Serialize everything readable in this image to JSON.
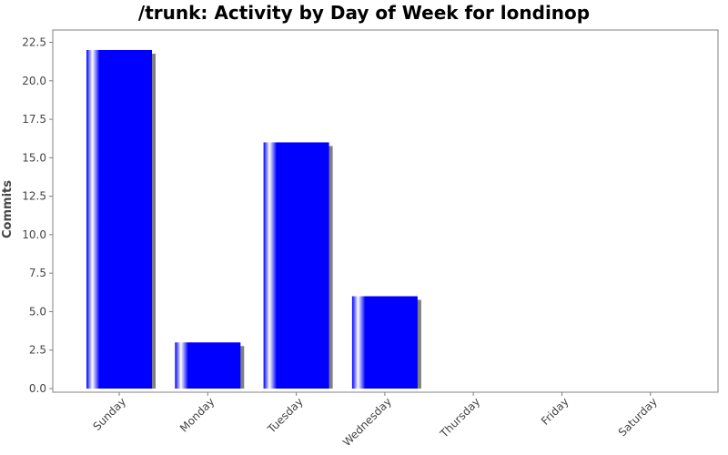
{
  "chart_data": {
    "type": "bar",
    "title": "/trunk: Activity by Day of Week for londinop",
    "xlabel": "",
    "ylabel": "Commits",
    "categories": [
      "Sunday",
      "Monday",
      "Tuesday",
      "Wednesday",
      "Thursday",
      "Friday",
      "Saturday"
    ],
    "values": [
      22,
      3,
      16,
      6,
      0,
      0,
      0
    ],
    "ylim": [
      0,
      23.3
    ],
    "yticks": [
      "0.0",
      "2.5",
      "5.0",
      "7.5",
      "10.0",
      "12.5",
      "15.0",
      "17.5",
      "20.0",
      "22.5"
    ],
    "grid": false,
    "legend": "none",
    "colors": {
      "bar": "#0000ff",
      "bar_highlight": "#ffffff",
      "shadow": "#808080",
      "axis": "#808080",
      "plot_border": "#808080"
    }
  }
}
